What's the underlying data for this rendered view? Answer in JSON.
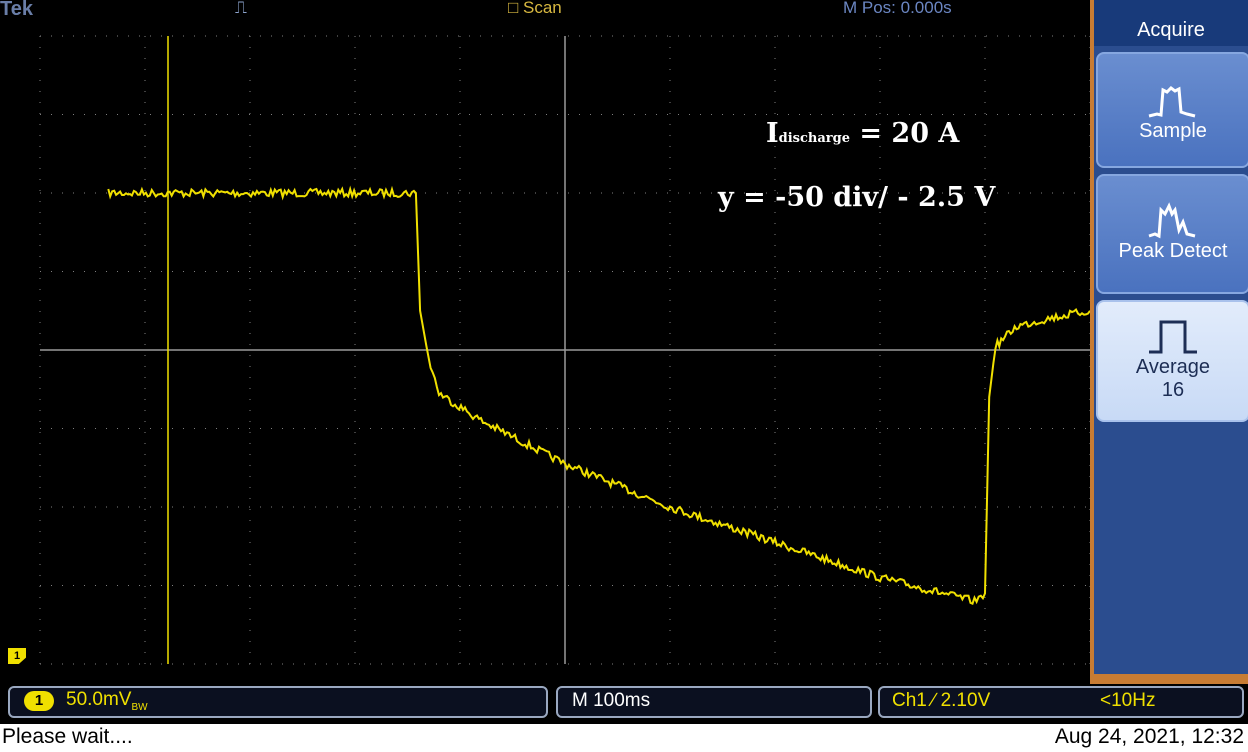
{
  "header": {
    "brand": "Tek",
    "trigger_symbol": "⎍",
    "acq_state": "□ Scan",
    "position": "M Pos: 0.000s"
  },
  "annotation": {
    "current_symbol": "I",
    "current_subscript": "discharge",
    "current_value": "= 20 A",
    "scale": "y = -50 div/ - 2.5 V"
  },
  "channel_marker": "1",
  "menu": {
    "title": "Acquire",
    "items": [
      {
        "label": "Sample",
        "icon": "sample-mode-icon",
        "selected": false
      },
      {
        "label": "Peak Detect",
        "icon": "peak-detect-icon",
        "selected": false
      },
      {
        "label": "Average",
        "sublabel": "16",
        "icon": "average-mode-icon",
        "selected": true
      }
    ]
  },
  "status": {
    "channel": "1",
    "volts_per_div": "50.0mV",
    "volts_suffix": "BW",
    "timebase": "M 100ms",
    "trigger": "Ch1 ∕ 2.10V",
    "frequency": "<10Hz",
    "message": "Please wait....",
    "datetime": "Aug 24, 2021, 12:32"
  },
  "colors": {
    "trace": "#f0e000",
    "graticule": "#7f7f7f",
    "menu_bg": "#2b4d8f",
    "menu_border": "#c87c33"
  },
  "chart_data": {
    "type": "line",
    "title": "",
    "xlabel": "",
    "ylabel": "",
    "x_unit": "div",
    "y_unit": "div",
    "xlim": [
      0,
      10
    ],
    "ylim": [
      -4,
      4
    ],
    "grid": true,
    "series": [
      {
        "x": [
          0.0,
          0.8,
          1.5,
          2.5,
          3.2,
          3.58,
          3.62,
          3.7,
          3.8,
          4.2,
          5.0,
          6.0,
          7.0,
          8.0,
          8.9,
          9.0,
          9.04,
          9.1,
          9.3,
          9.6,
          10.0
        ],
        "y": [
          2.0,
          2.0,
          2.0,
          2.0,
          2.0,
          2.0,
          0.5,
          -0.1,
          -0.55,
          -0.9,
          -1.45,
          -2.0,
          -2.45,
          -2.9,
          -3.2,
          -3.1,
          -0.6,
          0.05,
          0.3,
          0.4,
          0.5
        ]
      }
    ]
  }
}
